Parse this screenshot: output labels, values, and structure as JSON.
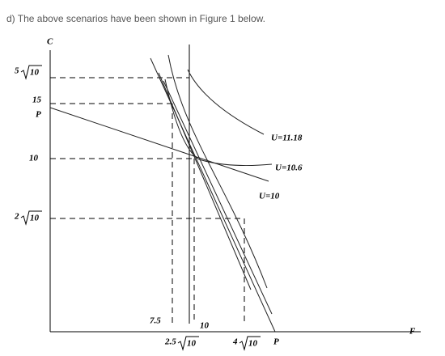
{
  "header": {
    "text": "d) The above scenarios have been shown in Figure 1 below."
  },
  "axes": {
    "y_label": "C",
    "x_label": "F"
  },
  "y_labels": [
    {
      "coef": "5",
      "radicand": "10"
    },
    {
      "text": "15"
    },
    {
      "text": "P"
    },
    {
      "text": "10"
    },
    {
      "coef": "2",
      "radicand": "10"
    }
  ],
  "x_labels": [
    {
      "text": "7.5"
    },
    {
      "text": "10"
    },
    {
      "coef": "2.5",
      "radicand": "10"
    },
    {
      "coef": "4",
      "radicand": "10"
    },
    {
      "text": "P"
    }
  ],
  "curve_labels": [
    "U=11.18",
    "U=10.6",
    "U=10"
  ]
}
